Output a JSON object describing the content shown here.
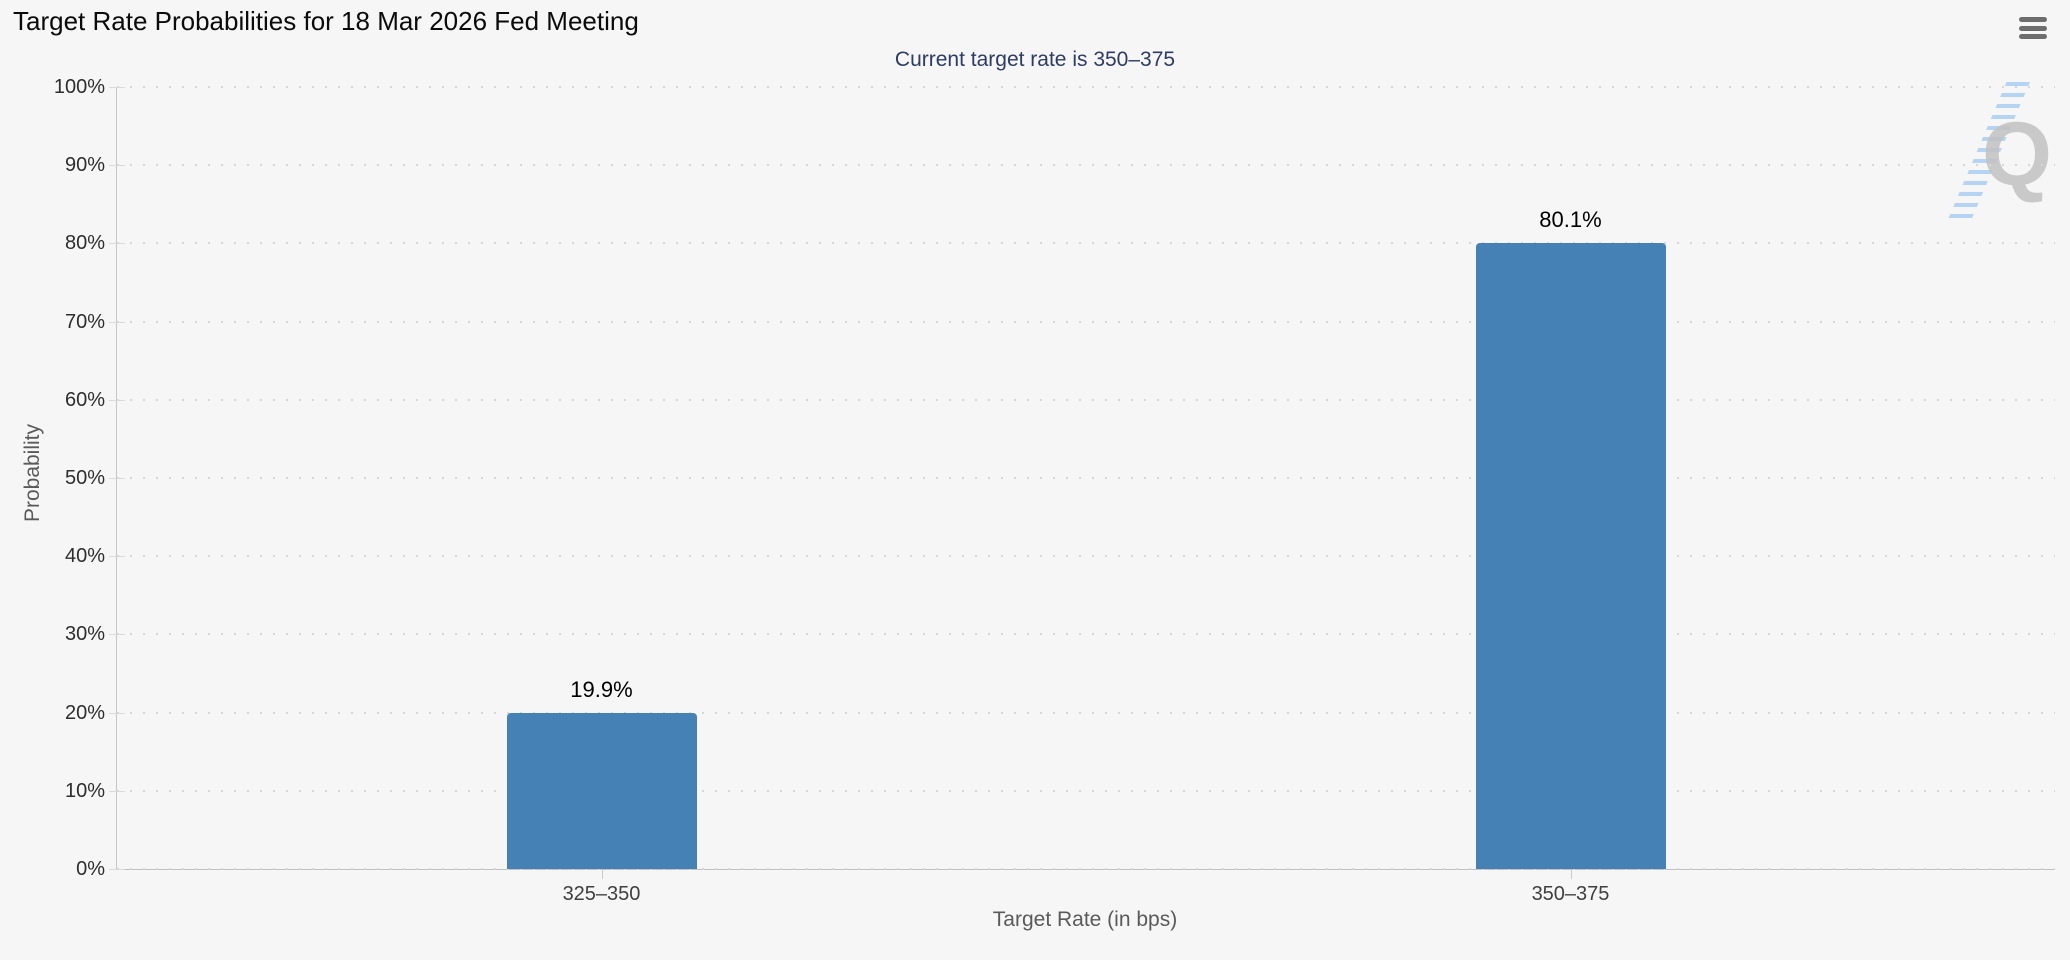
{
  "header": {
    "title": "Target Rate Probabilities for 18 Mar 2026 Fed Meeting",
    "subtitle": "Current target rate is 350–375",
    "menu_icon": "hamburger-menu-icon"
  },
  "watermark": {
    "letter": "Q"
  },
  "chart_data": {
    "type": "bar",
    "title": "Target Rate Probabilities for 18 Mar 2026 Fed Meeting",
    "subtitle": "Current target rate is 350–375",
    "categories": [
      "325–350",
      "350–375"
    ],
    "values": [
      19.9,
      80.1
    ],
    "bar_labels": [
      "19.9%",
      "80.1%"
    ],
    "xlabel": "Target Rate (in bps)",
    "ylabel": "Probability",
    "ylim": [
      0,
      100
    ],
    "ytick_values": [
      0,
      10,
      20,
      30,
      40,
      50,
      60,
      70,
      80,
      90,
      100
    ],
    "yticks": [
      "0%",
      "10%",
      "20%",
      "30%",
      "40%",
      "50%",
      "60%",
      "70%",
      "80%",
      "90%",
      "100%"
    ],
    "grid": "dotted-horizontal",
    "legend": "none",
    "bar_color": "#4681b6",
    "background_color": "#f6f6f6",
    "subtitle_color": "#2d3c62"
  }
}
